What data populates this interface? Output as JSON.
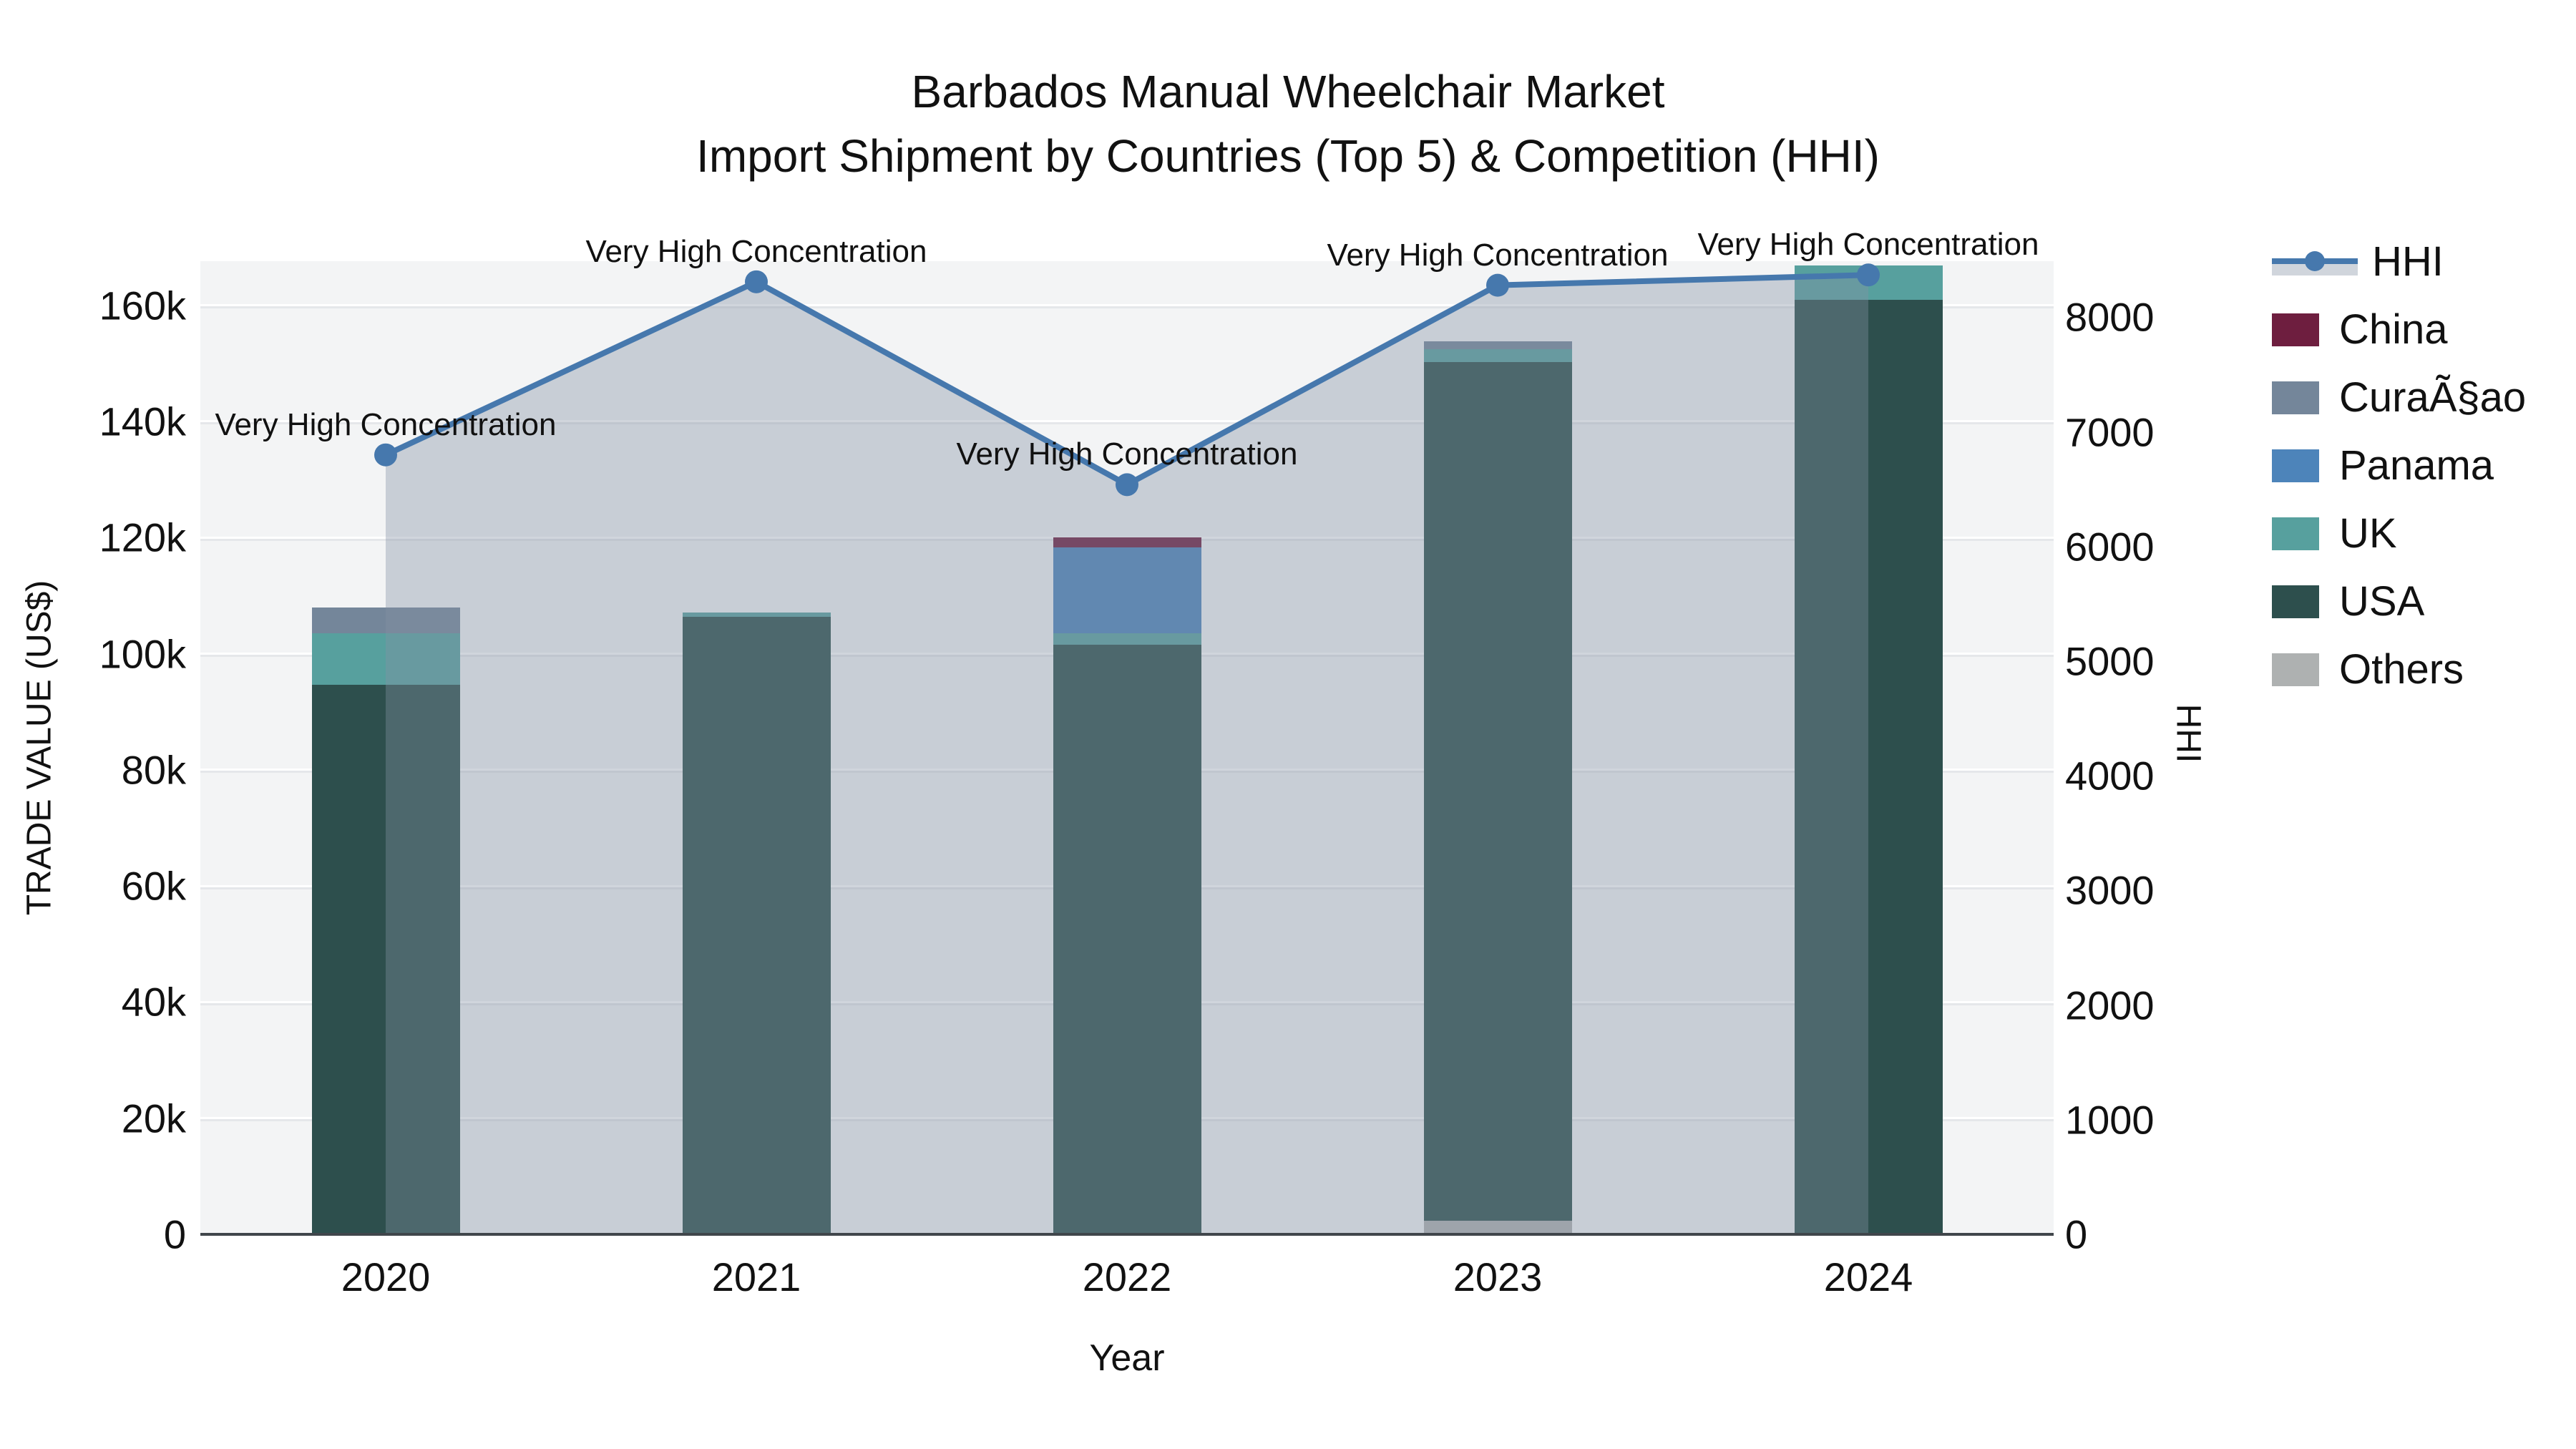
{
  "chart_data": {
    "type": "bar+line",
    "title": "Barbados Manual Wheelchair Market",
    "subtitle": "Import Shipment by Countries (Top 5) & Competition (HHI)",
    "xlabel": "Year",
    "ylabel": "TRADE VALUE (US$)",
    "y2label": "HHI",
    "categories": [
      "2020",
      "2021",
      "2022",
      "2023",
      "2024"
    ],
    "y_ticks": [
      {
        "value": 0,
        "label": "0"
      },
      {
        "value": 20000,
        "label": "20k"
      },
      {
        "value": 40000,
        "label": "40k"
      },
      {
        "value": 60000,
        "label": "60k"
      },
      {
        "value": 80000,
        "label": "80k"
      },
      {
        "value": 100000,
        "label": "100k"
      },
      {
        "value": 120000,
        "label": "120k"
      },
      {
        "value": 140000,
        "label": "140k"
      },
      {
        "value": 160000,
        "label": "160k"
      }
    ],
    "y2_ticks": [
      {
        "value": 0,
        "label": "0"
      },
      {
        "value": 1000,
        "label": "1000"
      },
      {
        "value": 2000,
        "label": "2000"
      },
      {
        "value": 3000,
        "label": "3000"
      },
      {
        "value": 4000,
        "label": "4000"
      },
      {
        "value": 5000,
        "label": "5000"
      },
      {
        "value": 6000,
        "label": "6000"
      },
      {
        "value": 7000,
        "label": "7000"
      },
      {
        "value": 8000,
        "label": "8000"
      }
    ],
    "ylim": [
      0,
      167600
    ],
    "y2lim": [
      0,
      8490
    ],
    "grid": "horizontal",
    "legend_position": "right",
    "series": [
      {
        "name": "Others",
        "color": "#aeb1b1",
        "values": [
          0,
          0,
          0,
          2300,
          0
        ]
      },
      {
        "name": "USA",
        "color": "#2d4f4d",
        "values": [
          94600,
          106300,
          101500,
          147900,
          161000
        ]
      },
      {
        "name": "UK",
        "color": "#57a09e",
        "values": [
          8900,
          800,
          2000,
          2200,
          5900
        ]
      },
      {
        "name": "Panama",
        "color": "#4d84ba",
        "values": [
          0,
          0,
          14800,
          0,
          0
        ]
      },
      {
        "name": "CuraÃ§ao",
        "color": "#74869a",
        "values": [
          4400,
          0,
          0,
          1400,
          0
        ]
      },
      {
        "name": "China",
        "color": "#6e1e3f",
        "values": [
          0,
          0,
          1700,
          0,
          0
        ]
      }
    ],
    "bar_totals": [
      107900,
      107100,
      120000,
      153800,
      166900
    ],
    "hhi": {
      "name": "HHI",
      "line_color": "#4678ad",
      "area_color": "rgba(131,145,164,0.38)",
      "values": [
        6800,
        8310,
        6540,
        8280,
        8370
      ],
      "annotation_text": "Very High Concentration"
    },
    "legend": [
      {
        "label": "HHI",
        "type": "line",
        "color": "#4678ad"
      },
      {
        "label": "China",
        "type": "swatch",
        "color": "#6e1e3f"
      },
      {
        "label": "CuraÃ§ao",
        "type": "swatch",
        "color": "#74869a"
      },
      {
        "label": "Panama",
        "type": "swatch",
        "color": "#4d84ba"
      },
      {
        "label": "UK",
        "type": "swatch",
        "color": "#57a09e"
      },
      {
        "label": "USA",
        "type": "swatch",
        "color": "#2d4f4d"
      },
      {
        "label": "Others",
        "type": "swatch",
        "color": "#aeb1b1"
      }
    ]
  }
}
